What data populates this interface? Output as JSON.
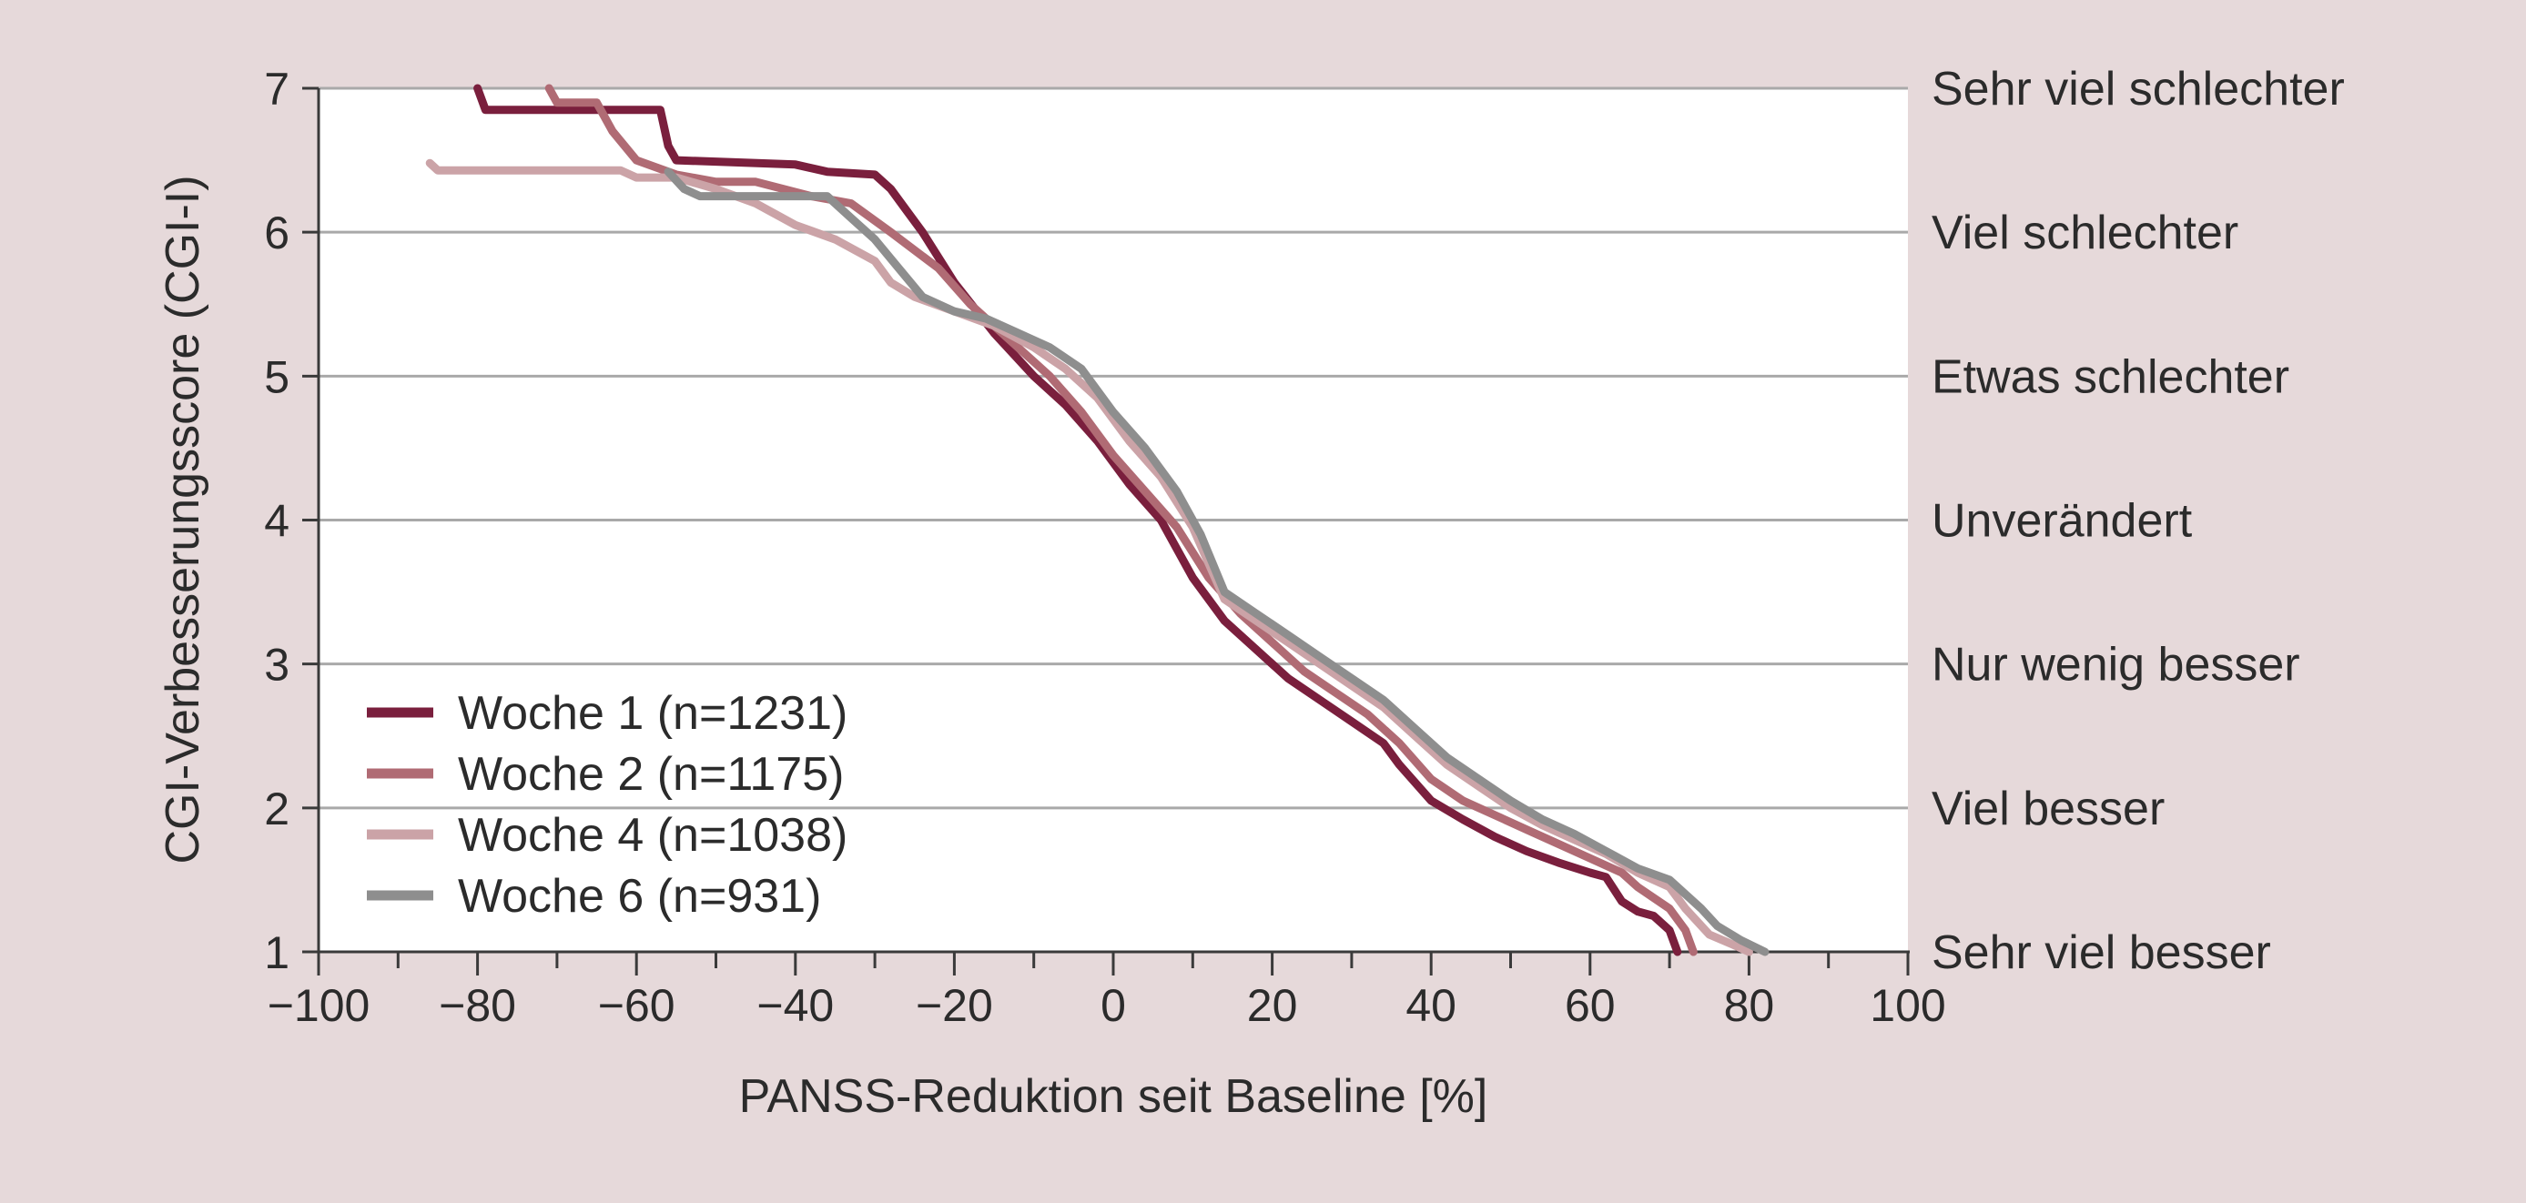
{
  "chart_data": {
    "type": "line",
    "title": "",
    "xlabel": "PANSS-Reduktion seit Baseline [%]",
    "ylabel": "CGI-Verbesserungsscore (CGI-I)",
    "xlim": [
      -100,
      100
    ],
    "ylim": [
      1,
      7
    ],
    "x_ticks": [
      -100,
      -80,
      -60,
      -40,
      -20,
      0,
      20,
      40,
      60,
      80,
      100
    ],
    "x_tick_labels": [
      "−100",
      "−80",
      "−60",
      "−40",
      "−20",
      "0",
      "20",
      "40",
      "60",
      "80",
      "100"
    ],
    "y_ticks": [
      1,
      2,
      3,
      4,
      5,
      6,
      7
    ],
    "y_tick_labels": [
      "1",
      "2",
      "3",
      "4",
      "5",
      "6",
      "7"
    ],
    "right_axis_labels": [
      "Sehr viel besser",
      "Viel besser",
      "Nur wenig besser",
      "Unverändert",
      "Etwas schlechter",
      "Viel schlechter",
      "Sehr viel schlechter"
    ],
    "grid": "horizontal",
    "legend_position": "bottom-left",
    "series": [
      {
        "name": "Woche 1 (n=1231)",
        "color": "#7a1f3d",
        "points": [
          [
            -80,
            7
          ],
          [
            -79,
            6.85
          ],
          [
            -57,
            6.85
          ],
          [
            -56,
            6.6
          ],
          [
            -55,
            6.5
          ],
          [
            -40,
            6.47
          ],
          [
            -36,
            6.42
          ],
          [
            -30,
            6.4
          ],
          [
            -28,
            6.3
          ],
          [
            -26,
            6.15
          ],
          [
            -24,
            6.0
          ],
          [
            -20,
            5.65
          ],
          [
            -15,
            5.3
          ],
          [
            -10,
            5.0
          ],
          [
            -6,
            4.8
          ],
          [
            -2,
            4.55
          ],
          [
            2,
            4.25
          ],
          [
            6,
            4.0
          ],
          [
            10,
            3.6
          ],
          [
            14,
            3.3
          ],
          [
            18,
            3.1
          ],
          [
            22,
            2.9
          ],
          [
            26,
            2.75
          ],
          [
            30,
            2.6
          ],
          [
            34,
            2.45
          ],
          [
            36,
            2.3
          ],
          [
            40,
            2.05
          ],
          [
            44,
            1.92
          ],
          [
            48,
            1.8
          ],
          [
            52,
            1.7
          ],
          [
            56,
            1.62
          ],
          [
            60,
            1.55
          ],
          [
            62,
            1.52
          ],
          [
            64,
            1.35
          ],
          [
            66,
            1.28
          ],
          [
            68,
            1.25
          ],
          [
            70,
            1.15
          ],
          [
            71,
            1.0
          ]
        ]
      },
      {
        "name": "Woche 2 (n=1175)",
        "color": "#b06b74",
        "points": [
          [
            -71,
            7
          ],
          [
            -70,
            6.9
          ],
          [
            -65,
            6.9
          ],
          [
            -63,
            6.7
          ],
          [
            -60,
            6.5
          ],
          [
            -55,
            6.4
          ],
          [
            -50,
            6.35
          ],
          [
            -45,
            6.35
          ],
          [
            -38,
            6.25
          ],
          [
            -33,
            6.2
          ],
          [
            -28,
            6.0
          ],
          [
            -22,
            5.75
          ],
          [
            -18,
            5.5
          ],
          [
            -12,
            5.2
          ],
          [
            -8,
            5.0
          ],
          [
            -4,
            4.75
          ],
          [
            0,
            4.45
          ],
          [
            4,
            4.2
          ],
          [
            8,
            3.95
          ],
          [
            12,
            3.6
          ],
          [
            16,
            3.35
          ],
          [
            20,
            3.15
          ],
          [
            24,
            2.95
          ],
          [
            28,
            2.8
          ],
          [
            32,
            2.65
          ],
          [
            36,
            2.45
          ],
          [
            40,
            2.2
          ],
          [
            44,
            2.05
          ],
          [
            48,
            1.95
          ],
          [
            52,
            1.85
          ],
          [
            56,
            1.75
          ],
          [
            60,
            1.65
          ],
          [
            64,
            1.55
          ],
          [
            66,
            1.45
          ],
          [
            70,
            1.3
          ],
          [
            72,
            1.15
          ],
          [
            73,
            1.0
          ]
        ]
      },
      {
        "name": "Woche 4 (n=1038)",
        "color": "#cba3a7",
        "points": [
          [
            -86,
            6.48
          ],
          [
            -85,
            6.43
          ],
          [
            -62,
            6.43
          ],
          [
            -60,
            6.38
          ],
          [
            -55,
            6.38
          ],
          [
            -50,
            6.3
          ],
          [
            -45,
            6.2
          ],
          [
            -40,
            6.05
          ],
          [
            -35,
            5.95
          ],
          [
            -30,
            5.8
          ],
          [
            -28,
            5.65
          ],
          [
            -25,
            5.55
          ],
          [
            -20,
            5.45
          ],
          [
            -15,
            5.35
          ],
          [
            -10,
            5.2
          ],
          [
            -6,
            5.05
          ],
          [
            -2,
            4.85
          ],
          [
            2,
            4.55
          ],
          [
            6,
            4.3
          ],
          [
            10,
            3.95
          ],
          [
            14,
            3.45
          ],
          [
            18,
            3.3
          ],
          [
            22,
            3.15
          ],
          [
            26,
            3.0
          ],
          [
            30,
            2.85
          ],
          [
            34,
            2.7
          ],
          [
            38,
            2.5
          ],
          [
            42,
            2.3
          ],
          [
            46,
            2.15
          ],
          [
            50,
            2.0
          ],
          [
            54,
            1.88
          ],
          [
            58,
            1.78
          ],
          [
            62,
            1.68
          ],
          [
            66,
            1.55
          ],
          [
            70,
            1.45
          ],
          [
            72,
            1.3
          ],
          [
            75,
            1.12
          ],
          [
            78,
            1.05
          ],
          [
            80,
            1.0
          ]
        ]
      },
      {
        "name": "Woche 6 (n=931)",
        "color": "#8e8e8e",
        "points": [
          [
            -56,
            6.42
          ],
          [
            -54,
            6.3
          ],
          [
            -52,
            6.25
          ],
          [
            -36,
            6.25
          ],
          [
            -33,
            6.1
          ],
          [
            -30,
            5.95
          ],
          [
            -27,
            5.75
          ],
          [
            -24,
            5.55
          ],
          [
            -20,
            5.45
          ],
          [
            -16,
            5.4
          ],
          [
            -12,
            5.3
          ],
          [
            -8,
            5.2
          ],
          [
            -4,
            5.05
          ],
          [
            0,
            4.75
          ],
          [
            4,
            4.5
          ],
          [
            8,
            4.2
          ],
          [
            11,
            3.9
          ],
          [
            14,
            3.5
          ],
          [
            18,
            3.35
          ],
          [
            22,
            3.2
          ],
          [
            26,
            3.05
          ],
          [
            30,
            2.9
          ],
          [
            34,
            2.75
          ],
          [
            38,
            2.55
          ],
          [
            42,
            2.35
          ],
          [
            46,
            2.2
          ],
          [
            50,
            2.05
          ],
          [
            54,
            1.92
          ],
          [
            58,
            1.82
          ],
          [
            62,
            1.7
          ],
          [
            66,
            1.58
          ],
          [
            70,
            1.5
          ],
          [
            72,
            1.4
          ],
          [
            74,
            1.3
          ],
          [
            76,
            1.18
          ],
          [
            79,
            1.08
          ],
          [
            82,
            1.0
          ]
        ]
      }
    ]
  }
}
